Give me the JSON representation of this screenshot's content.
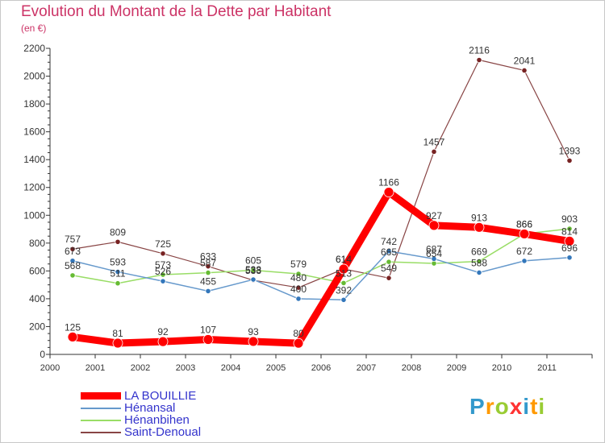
{
  "header": {
    "title": "Evolution du Montant de la Dette par Habitant",
    "unit": "(en €)"
  },
  "colors": {
    "title": "#cc3366",
    "legend_text": "#3333cc",
    "axis": "#333333"
  },
  "logo": {
    "text": "Proxiti",
    "letters": [
      "P",
      "r",
      "o",
      "x",
      "i",
      "t",
      "i"
    ],
    "colors": [
      "#3399cc",
      "#ff9900",
      "#99cc33",
      "#ff3333",
      "#3399cc",
      "#ff9900",
      "#99cc33"
    ]
  },
  "chart_data": {
    "type": "line",
    "title": "Evolution du Montant de la Dette par Habitant",
    "ylabel": "(en €)",
    "x": [
      "2000",
      "2001",
      "2002",
      "2003",
      "2004",
      "2005",
      "2006",
      "2007",
      "2008",
      "2009",
      "2010",
      "2011"
    ],
    "ylim": [
      0,
      2200
    ],
    "yticks": [
      0,
      200,
      400,
      600,
      800,
      1000,
      1200,
      1400,
      1600,
      1800,
      2000,
      2200
    ],
    "grid": false,
    "legend_position": "bottom-left",
    "series": [
      {
        "name": "LA BOUILLIE",
        "color": "#ff0000",
        "width": 9,
        "marker_color": "#ff0000",
        "marker_r": 6,
        "values": [
          125,
          81,
          92,
          107,
          93,
          80,
          614,
          1166,
          927,
          913,
          866,
          814
        ],
        "labels": [
          "125",
          "81",
          "92",
          "107",
          "93",
          "80",
          "614",
          "1166",
          "927",
          "913",
          "866",
          "814"
        ]
      },
      {
        "name": "Hénansal",
        "color": "#6699cc",
        "width": 1.5,
        "marker_color": "#3377bb",
        "marker_r": 3.2,
        "values": [
          673,
          593,
          526,
          455,
          538,
          400,
          392,
          742,
          687,
          588,
          672,
          696
        ],
        "labels": [
          "673",
          "593",
          "526",
          "455",
          "538",
          "400",
          "392",
          "742",
          "687",
          "588",
          "672",
          "696"
        ]
      },
      {
        "name": "Hénanbihen",
        "color": "#99dd66",
        "width": 1.5,
        "marker_color": "#66bb33",
        "marker_r": 3.2,
        "values": [
          568,
          511,
          573,
          587,
          605,
          579,
          513,
          665,
          654,
          669,
          866,
          903
        ],
        "labels": [
          "568",
          "511",
          "573",
          "587",
          "605",
          "579",
          "513",
          "665",
          "654",
          "669",
          "866",
          "903"
        ]
      },
      {
        "name": "Saint-Denoual",
        "color": "#884444",
        "width": 1.2,
        "marker_color": "#772222",
        "marker_r": 3.2,
        "values": [
          757,
          809,
          725,
          633,
          533,
          480,
          614,
          549,
          1457,
          2116,
          2041,
          1393
        ],
        "labels": [
          "757",
          "809",
          "725",
          "633",
          "533",
          "480",
          "614",
          "549",
          "1457",
          "2116",
          "2041",
          "1393"
        ]
      }
    ]
  }
}
